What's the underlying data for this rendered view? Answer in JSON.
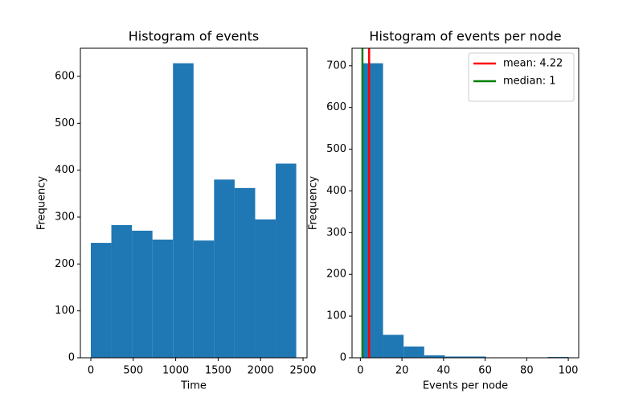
{
  "chart_data": [
    {
      "type": "histogram",
      "title": "Histogram of events",
      "xlabel": "Time",
      "ylabel": "Frequency",
      "bins": [
        0,
        242,
        484,
        726,
        968,
        1210,
        1452,
        1694,
        1936,
        2178,
        2420
      ],
      "values": [
        245,
        283,
        271,
        252,
        628,
        250,
        380,
        362,
        295,
        414
      ],
      "color": "#1f77b4",
      "xlim": [
        -123,
        2547
      ],
      "xticks": [
        0,
        500,
        1000,
        1500,
        2000,
        2500
      ],
      "ylim": [
        0,
        660
      ],
      "yticks": [
        0,
        100,
        200,
        300,
        400,
        500,
        600
      ]
    },
    {
      "type": "histogram",
      "title": "Histogram of events per node",
      "xlabel": "Events per node",
      "ylabel": "Frequency",
      "bins": [
        1,
        10.9,
        20.8,
        30.7,
        40.6,
        50.5,
        60.4,
        70.3,
        80.2,
        90.1,
        100
      ],
      "values": [
        706,
        55,
        27,
        6,
        3,
        3,
        0,
        0,
        0,
        2
      ],
      "color": "#1f77b4",
      "xlim": [
        -4,
        105
      ],
      "xticks": [
        0,
        20,
        40,
        60,
        80,
        100
      ],
      "ylim": [
        0,
        742
      ],
      "yticks": [
        0,
        100,
        200,
        300,
        400,
        500,
        600,
        700
      ],
      "lines": [
        {
          "name": "mean: 4.22",
          "value": 4.22,
          "color": "#ff0000"
        },
        {
          "name": "median: 1",
          "value": 1,
          "color": "#008000"
        }
      ],
      "legend": "upper right"
    }
  ]
}
